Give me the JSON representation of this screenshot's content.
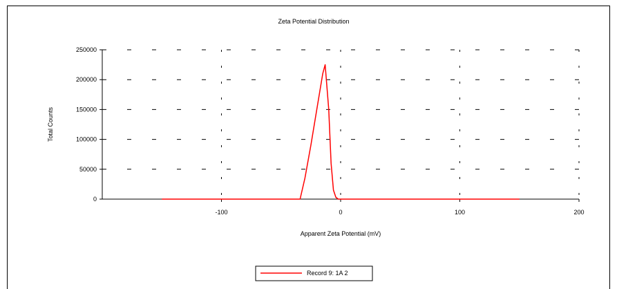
{
  "chart_data": {
    "type": "line",
    "title": "Zeta Potential Distribution",
    "xlabel": "Apparent Zeta Potential (mV)",
    "ylabel": "Total Counts",
    "xlim": [
      -200,
      200
    ],
    "ylim": [
      0,
      250000
    ],
    "x_ticks": [
      -100,
      0,
      100,
      200
    ],
    "y_ticks": [
      0,
      50000,
      100000,
      150000,
      200000,
      250000
    ],
    "grid": true,
    "legend_position": "bottom",
    "series": [
      {
        "name": "Record 9: 1A 2",
        "color": "#ff0000",
        "x": [
          -150,
          -34,
          -30,
          -25,
          -20,
          -15,
          -13,
          -10,
          -8,
          -6,
          -4,
          -2,
          0,
          150
        ],
        "y": [
          0,
          0,
          35000,
          90000,
          150000,
          210000,
          225000,
          150000,
          60000,
          15000,
          3000,
          0,
          0,
          0
        ]
      }
    ]
  }
}
